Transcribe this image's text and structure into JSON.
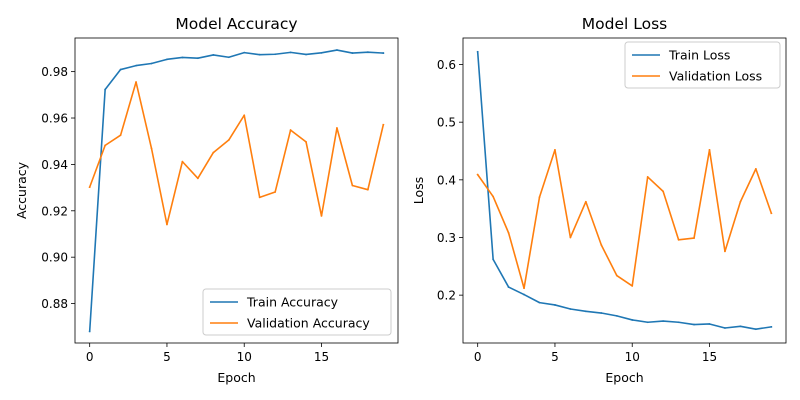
{
  "chart_data": [
    {
      "type": "line",
      "title": "Model Accuracy",
      "xlabel": "Epoch",
      "ylabel": "Accuracy",
      "xlim": [
        -0.95,
        19.95
      ],
      "ylim": [
        0.863,
        0.9945
      ],
      "xticks": [
        0,
        5,
        10,
        15
      ],
      "yticks": [
        0.88,
        0.9,
        0.92,
        0.94,
        0.96,
        0.98
      ],
      "ytick_labels": [
        "0.88",
        "0.90",
        "0.92",
        "0.94",
        "0.96",
        "0.98"
      ],
      "grid": false,
      "legend_position": "lower-right",
      "x": [
        0,
        1,
        2,
        3,
        4,
        5,
        6,
        7,
        8,
        9,
        10,
        11,
        12,
        13,
        14,
        15,
        16,
        17,
        18,
        19
      ],
      "series": [
        {
          "name": "Train Accuracy",
          "color": "#1f77b4",
          "values": [
            0.868,
            0.9723,
            0.9809,
            0.9826,
            0.9835,
            0.9853,
            0.9861,
            0.9858,
            0.9872,
            0.9862,
            0.9882,
            0.9873,
            0.9875,
            0.9883,
            0.9874,
            0.9881,
            0.9893,
            0.988,
            0.9884,
            0.988
          ]
        },
        {
          "name": "Validation Accuracy",
          "color": "#ff7f0e",
          "values": [
            0.9302,
            0.9482,
            0.9526,
            0.9755,
            0.9469,
            0.9141,
            0.9412,
            0.934,
            0.9451,
            0.9505,
            0.9612,
            0.9258,
            0.9281,
            0.9548,
            0.9497,
            0.9178,
            0.9557,
            0.9309,
            0.9291,
            0.9571
          ]
        }
      ]
    },
    {
      "type": "line",
      "title": "Model Loss",
      "xlabel": "Epoch",
      "ylabel": "Loss",
      "xlim": [
        -0.95,
        19.95
      ],
      "ylim": [
        0.117,
        0.646
      ],
      "xticks": [
        0,
        5,
        10,
        15
      ],
      "yticks": [
        0.2,
        0.3,
        0.4,
        0.5,
        0.6
      ],
      "ytick_labels": [
        "0.2",
        "0.3",
        "0.4",
        "0.5",
        "0.6"
      ],
      "grid": false,
      "legend_position": "upper-right",
      "x": [
        0,
        1,
        2,
        3,
        4,
        5,
        6,
        7,
        8,
        9,
        10,
        11,
        12,
        13,
        14,
        15,
        16,
        17,
        18,
        19
      ],
      "series": [
        {
          "name": "Train Loss",
          "color": "#1f77b4",
          "values": [
            0.622,
            0.262,
            0.214,
            0.201,
            0.187,
            0.183,
            0.176,
            0.172,
            0.169,
            0.164,
            0.157,
            0.153,
            0.155,
            0.153,
            0.149,
            0.15,
            0.143,
            0.146,
            0.141,
            0.145
          ]
        },
        {
          "name": "Validation Loss",
          "color": "#ff7f0e",
          "values": [
            0.409,
            0.371,
            0.308,
            0.212,
            0.37,
            0.452,
            0.3,
            0.362,
            0.287,
            0.234,
            0.216,
            0.405,
            0.38,
            0.296,
            0.299,
            0.452,
            0.276,
            0.362,
            0.419,
            0.342
          ]
        }
      ]
    }
  ]
}
